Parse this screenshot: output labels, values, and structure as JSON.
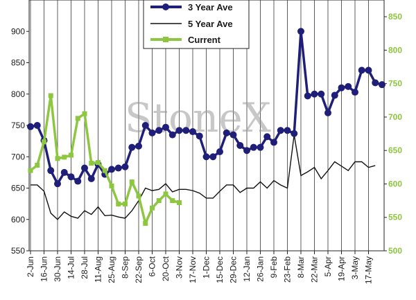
{
  "chart_data": {
    "type": "line",
    "title": "",
    "xlabel": "",
    "ylabel": "",
    "watermark": "StoneX",
    "ylim_left": [
      550,
      950
    ],
    "yticks_left": [
      550,
      600,
      650,
      700,
      750,
      800,
      850,
      900
    ],
    "ylim_right": [
      500,
      875
    ],
    "yticks_right": [
      500,
      550,
      600,
      650,
      700,
      750,
      800,
      850
    ],
    "grid": "vertical",
    "legend_position": "top-center",
    "x_tick_labels": [
      "2-Jun",
      "16-Jun",
      "30-Jun",
      "14-Jul",
      "28-Jul",
      "11-Aug",
      "25-Aug",
      "8-Sep",
      "22-Sep",
      "6-Oct",
      "20-Oct",
      "3-Nov",
      "17-Nov",
      "1-Dec",
      "15-Dec",
      "29-Dec",
      "12-Jan",
      "26-Jan",
      "9-Feb",
      "23-Feb",
      "8-Mar",
      "22-Mar",
      "5-Apr",
      "19-Apr",
      "3-May",
      "17-May"
    ],
    "series": [
      {
        "name": "3 Year Ave",
        "axis": "left",
        "color": "#1f1f7a",
        "values": [
          748,
          750,
          726,
          678,
          657,
          675,
          668,
          661,
          682,
          665,
          688,
          672,
          680,
          682,
          684,
          715,
          717,
          750,
          738,
          742,
          747,
          735,
          742,
          742,
          740,
          733,
          700,
          700,
          708,
          738,
          735,
          718,
          710,
          715,
          715,
          732,
          723,
          742,
          742,
          737,
          900,
          797,
          800,
          800,
          770,
          798,
          810,
          812,
          803,
          838,
          838,
          818,
          815
        ]
      },
      {
        "name": "5 Year Ave",
        "axis": "left",
        "color": "#111111",
        "values": [
          655,
          655,
          645,
          610,
          600,
          612,
          605,
          602,
          614,
          608,
          620,
          606,
          607,
          604,
          602,
          614,
          630,
          650,
          646,
          648,
          657,
          644,
          648,
          648,
          646,
          642,
          634,
          634,
          645,
          655,
          655,
          643,
          650,
          650,
          660,
          650,
          662,
          655,
          650,
          735,
          670,
          676,
          683,
          665,
          678,
          692,
          685,
          678,
          692,
          692,
          683,
          686
        ]
      },
      {
        "name": "Current",
        "axis": "right",
        "color": "#8dc63f",
        "values": [
          620,
          628,
          663,
          732,
          638,
          640,
          643,
          698,
          705,
          631,
          632,
          620,
          597,
          570,
          570,
          603,
          582,
          541,
          564,
          575,
          585,
          575,
          572
        ]
      }
    ]
  }
}
